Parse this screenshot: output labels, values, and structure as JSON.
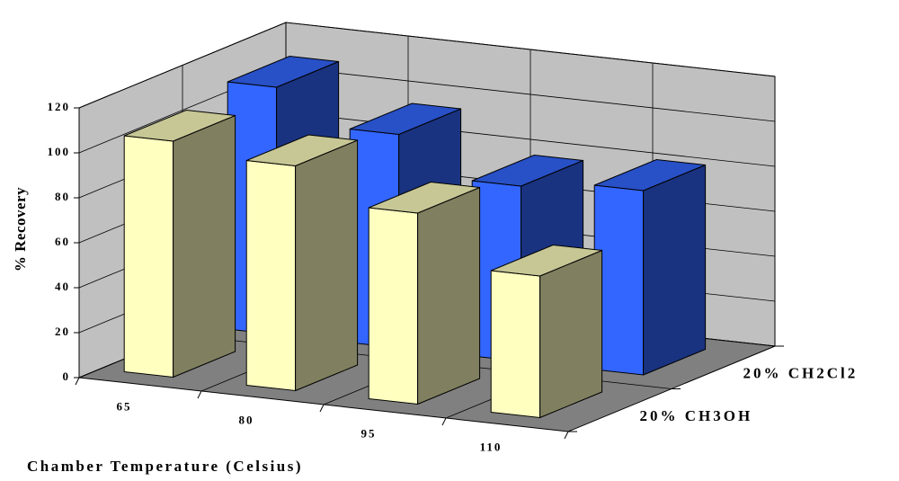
{
  "chart_data": {
    "type": "bar3d",
    "x_label": "Chamber Temperature (Celsius)",
    "y_label": "% Recovery",
    "categories": [
      "65",
      "80",
      "95",
      "110"
    ],
    "series": [
      {
        "name": "20% CH3OH",
        "color": "#ffffc0",
        "values": [
          105,
          100,
          85,
          63
        ]
      },
      {
        "name": "20% CH2Cl2",
        "color": "#3366ff",
        "values": [
          110,
          95,
          78,
          82
        ]
      }
    ],
    "ylim": [
      0,
      120
    ],
    "yticks": [
      0,
      20,
      40,
      60,
      80,
      100,
      120
    ],
    "grid": true
  }
}
